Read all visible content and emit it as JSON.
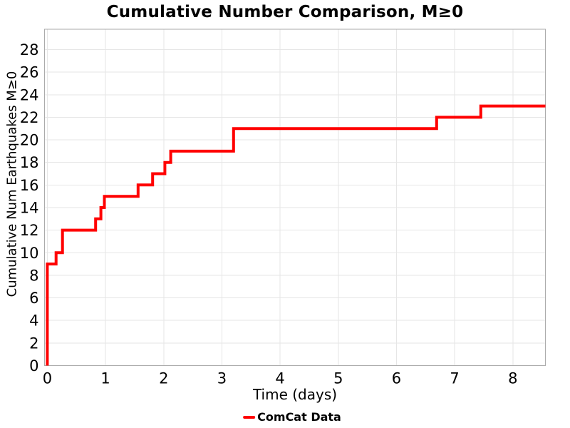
{
  "chart_data": {
    "type": "line",
    "subtype": "step-post",
    "title": "Cumulative Number Comparison, M≥0",
    "xlabel": "Time (days)",
    "ylabel": "Cumulative Num Earthquakes M≥0",
    "xlim": [
      -0.048,
      8.56
    ],
    "ylim": [
      0,
      29.8
    ],
    "xticks": [
      0,
      1,
      2,
      3,
      4,
      5,
      6,
      7,
      8
    ],
    "yticks": [
      0,
      2,
      4,
      6,
      8,
      10,
      12,
      14,
      16,
      18,
      20,
      22,
      24,
      26,
      28
    ],
    "grid": true,
    "legend_position": "bottom-center",
    "series": [
      {
        "name": "ComCat Data",
        "color": "#FF0000",
        "line_width": 4,
        "start": [
          0,
          0
        ],
        "steps": [
          [
            0.0,
            9
          ],
          [
            0.15,
            10
          ],
          [
            0.26,
            12
          ],
          [
            0.83,
            13
          ],
          [
            0.92,
            14
          ],
          [
            0.98,
            15
          ],
          [
            1.56,
            16
          ],
          [
            1.81,
            17
          ],
          [
            2.02,
            18
          ],
          [
            2.12,
            19
          ],
          [
            3.2,
            21
          ],
          [
            6.69,
            22
          ],
          [
            7.45,
            23
          ]
        ],
        "end_x": 8.56
      }
    ]
  },
  "colors": {
    "series": "#FF0000",
    "grid": "#E6E6E6",
    "border": "#ABABAB",
    "text": "#000000",
    "background": "#FFFFFF"
  }
}
